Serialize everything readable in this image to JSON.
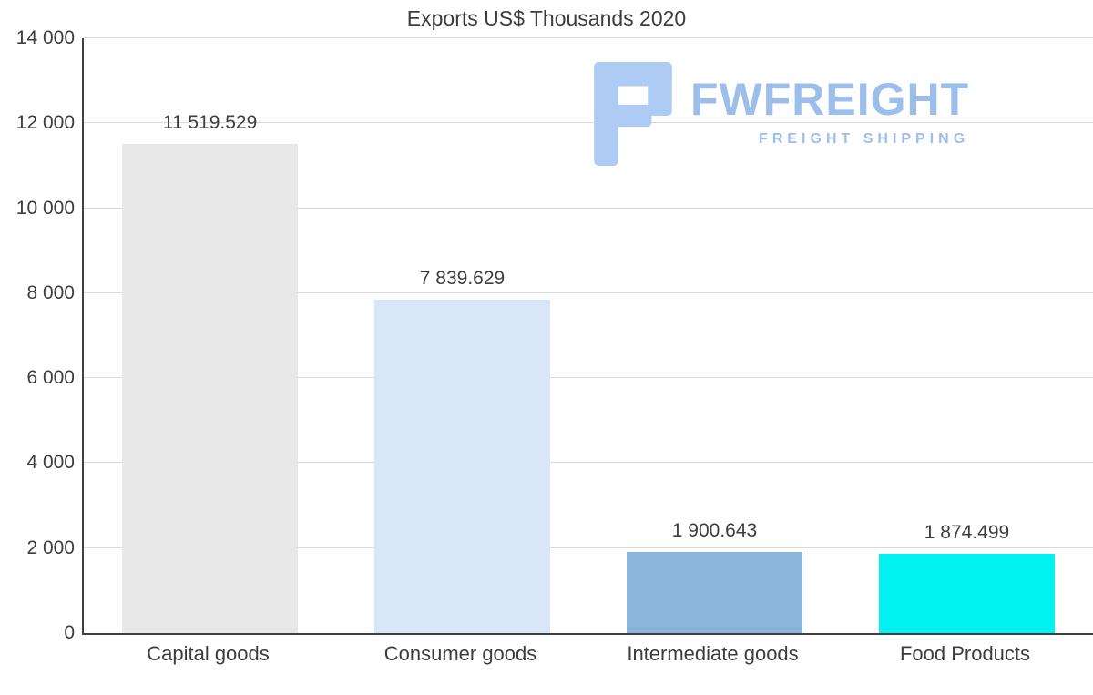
{
  "watermark": {
    "brand": "FWFREIGHT",
    "tagline": "FREIGHT SHIPPING",
    "logo_color": "#aecbf4",
    "text_color": "#9cbeec"
  },
  "chart_data": {
    "type": "bar",
    "title": "Exports US$ Thousands 2020",
    "categories": [
      "Capital goods",
      "Consumer goods",
      "Intermediate goods",
      "Food Products"
    ],
    "values": [
      11519.529,
      7839.629,
      1900.643,
      1874.499
    ],
    "value_labels": [
      "11 519.529",
      "7 839.629",
      "1 900.643",
      "1 874.499"
    ],
    "bar_colors": [
      "#e8e8e8",
      "#d9e6f7",
      "#8ab5dd",
      "#00f2f2"
    ],
    "xlabel": "",
    "ylabel": "",
    "ylim": [
      0,
      14000
    ],
    "ytick_interval": 2000,
    "ytick_labels": [
      "0",
      "2 000",
      "4 000",
      "6 000",
      "8 000",
      "10 000",
      "12 000",
      "14 000"
    ],
    "grid": true,
    "legend": "none",
    "axis_color": "#3f3f3f",
    "gridline_color": "#d9d9d9",
    "text_color": "#3d3d3d"
  }
}
